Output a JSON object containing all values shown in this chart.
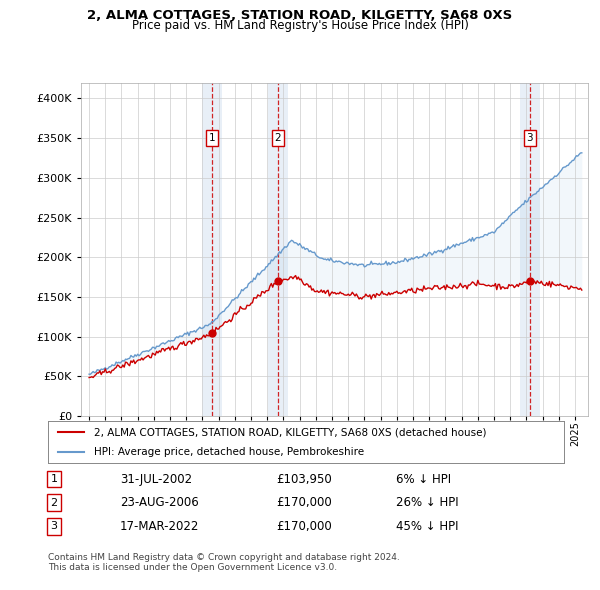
{
  "title1": "2, ALMA COTTAGES, STATION ROAD, KILGETTY, SA68 0XS",
  "title2": "Price paid vs. HM Land Registry's House Price Index (HPI)",
  "legend_line1": "2, ALMA COTTAGES, STATION ROAD, KILGETTY, SA68 0XS (detached house)",
  "legend_line2": "HPI: Average price, detached house, Pembrokeshire",
  "transactions": [
    {
      "num": 1,
      "date": "31-JUL-2002",
      "price": 103950,
      "pct": "6%",
      "x": 2002.58
    },
    {
      "num": 2,
      "date": "23-AUG-2006",
      "price": 170000,
      "pct": "26%",
      "x": 2006.65
    },
    {
      "num": 3,
      "date": "17-MAR-2022",
      "price": 170000,
      "pct": "45%",
      "x": 2022.21
    }
  ],
  "footnote1": "Contains HM Land Registry data © Crown copyright and database right 2024.",
  "footnote2": "This data is licensed under the Open Government Licence v3.0.",
  "red_color": "#cc0000",
  "blue_color": "#6699cc",
  "blue_fill": "#cce0f0",
  "ylim": [
    0,
    420000
  ],
  "xlim_start": 1994.5,
  "xlim_end": 2025.8,
  "yticks": [
    0,
    50000,
    100000,
    150000,
    200000,
    250000,
    300000,
    350000,
    400000
  ]
}
